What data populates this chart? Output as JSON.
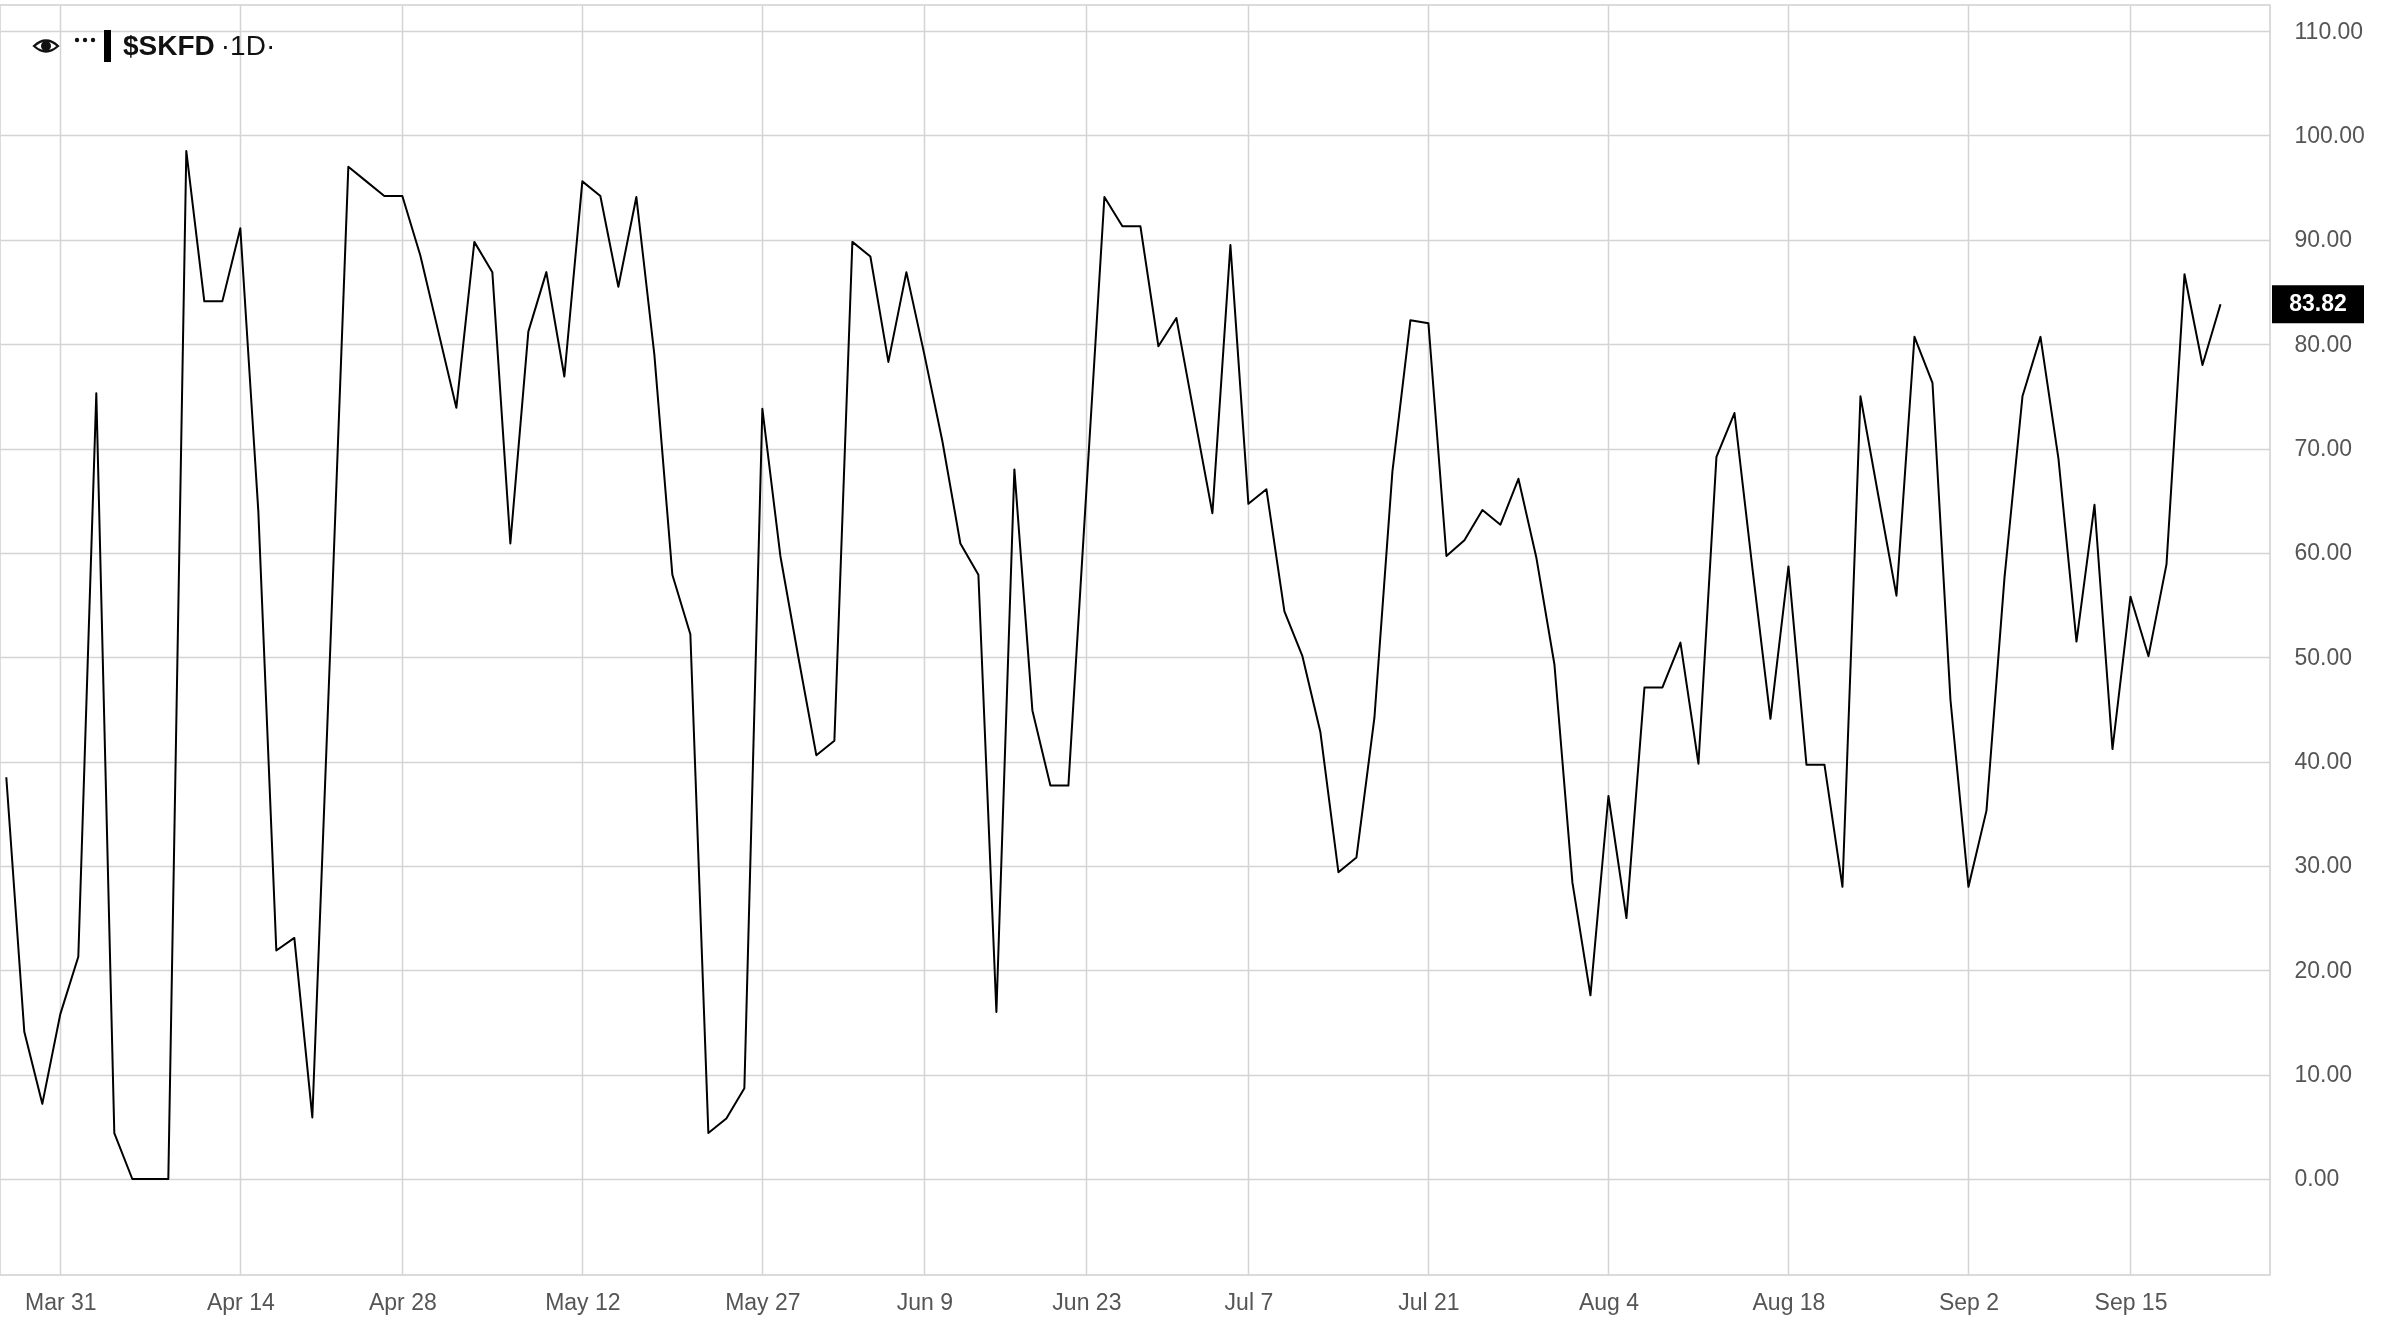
{
  "chart_data": {
    "type": "line",
    "title": "$SKFD",
    "subtitle": "·1D·",
    "categories": [
      null,
      null,
      null,
      "Mar 31",
      null,
      null,
      null,
      null,
      null,
      null,
      null,
      null,
      null,
      "Apr 14",
      null,
      null,
      null,
      null,
      null,
      null,
      null,
      null,
      "Apr 28",
      null,
      null,
      null,
      null,
      null,
      null,
      null,
      null,
      null,
      "May 12",
      null,
      null,
      null,
      null,
      null,
      null,
      null,
      null,
      null,
      "May 27",
      null,
      null,
      null,
      null,
      null,
      null,
      null,
      null,
      "Jun 9",
      null,
      null,
      null,
      null,
      null,
      null,
      null,
      null,
      "Jun 23",
      null,
      null,
      null,
      null,
      null,
      null,
      null,
      null,
      "Jul 7",
      null,
      null,
      null,
      null,
      null,
      null,
      null,
      null,
      null,
      "Jul 21",
      null,
      null,
      null,
      null,
      null,
      null,
      null,
      null,
      null,
      "Aug 4",
      null,
      null,
      null,
      null,
      null,
      null,
      null,
      null,
      null,
      "Aug 18",
      null,
      null,
      null,
      null,
      null,
      null,
      null,
      null,
      null,
      "Sep 2",
      null,
      null,
      null,
      null,
      null,
      null,
      null,
      null,
      "Sep 15",
      null,
      null,
      null,
      null,
      null
    ],
    "series": [
      {
        "color": "#000000",
        "values": [
          38.5,
          14.1,
          7.2,
          15.8,
          21.3,
          75.3,
          4.4,
          0,
          0,
          0,
          98.5,
          84.1,
          84.1,
          91.1,
          64,
          21.9,
          23.1,
          5.9,
          51,
          97.0,
          95.6,
          94.2,
          94.2,
          88.5,
          81.2,
          73.9,
          89.8,
          86.9,
          60.9,
          81.2,
          86.9,
          76.9,
          95.6,
          94.2,
          85.5,
          94.1,
          79,
          57.9,
          52.2,
          4.4,
          5.8,
          8.7,
          73.8,
          59.7,
          50,
          40.6,
          42.0,
          89.8,
          88.4,
          78.3,
          86.9,
          79,
          70.7,
          60.9,
          57.9,
          16.0,
          68.0,
          44.9,
          37.7,
          37.7,
          66,
          94.1,
          91.3,
          91.3,
          79.8,
          82.5,
          73.1,
          63.8,
          89.5,
          64.7,
          66.1,
          54.4,
          50.1,
          42.8,
          29.4,
          30.8,
          44.2,
          67.8,
          82.3,
          82.0,
          59.7,
          61.2,
          64.1,
          62.7,
          67.1,
          59.5,
          49.3,
          28.4,
          17.6,
          36.7,
          25.0,
          47.1,
          47.1,
          51.4,
          39.8,
          69.2,
          73.4,
          58.5,
          44.1,
          58.7,
          39.7,
          39.7,
          28.0,
          75.0,
          65.4,
          55.9,
          80.7,
          76.3,
          45.9,
          28.0,
          35.3,
          57.6,
          75.0,
          80.7,
          69.0,
          51.5,
          64.6,
          41.2,
          55.8,
          50.1,
          58.9,
          86.7,
          78.0,
          83.82
        ]
      }
    ],
    "annotations": [
      "83.82"
    ],
    "ylim": [
      -9.2,
      112.5
    ],
    "yticks": [
      {
        "value": 0,
        "label": "0.00"
      },
      {
        "value": 10,
        "label": "10.00"
      },
      {
        "value": 20,
        "label": "20.00"
      },
      {
        "value": 30,
        "label": "30.00"
      },
      {
        "value": 40,
        "label": "40.00"
      },
      {
        "value": 50,
        "label": "50.00"
      },
      {
        "value": 60,
        "label": "60.00"
      },
      {
        "value": 70,
        "label": "70.00"
      },
      {
        "value": 80,
        "label": "80.00"
      },
      {
        "value": 90,
        "label": "90.00"
      },
      {
        "value": 100,
        "label": "100.00"
      },
      {
        "value": 110,
        "label": "110.00"
      }
    ],
    "grid": true
  }
}
